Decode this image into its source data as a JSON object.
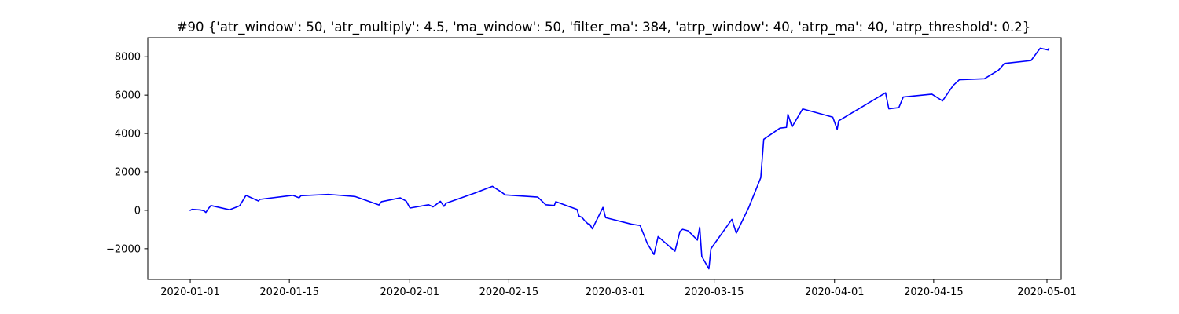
{
  "chart_data": {
    "type": "line",
    "title": "#90 {'atr_window': 50, 'atr_multiply': 4.5, 'ma_window': 50, 'filter_ma': 384, 'atrp_window': 40, 'atrp_ma': 40, 'atrp_threshold': 0.2}",
    "xlabel": "",
    "ylabel": "",
    "grid": false,
    "legend": "none",
    "xlim": [
      "2019-12-26",
      "2020-05-03"
    ],
    "ylim": [
      -3600,
      8990
    ],
    "x_ticks": [
      {
        "date": "2020-01-01",
        "label": "2020-01-01"
      },
      {
        "date": "2020-01-15",
        "label": "2020-01-15"
      },
      {
        "date": "2020-02-01",
        "label": "2020-02-01"
      },
      {
        "date": "2020-02-15",
        "label": "2020-02-15"
      },
      {
        "date": "2020-03-01",
        "label": "2020-03-01"
      },
      {
        "date": "2020-03-15",
        "label": "2020-03-15"
      },
      {
        "date": "2020-04-01",
        "label": "2020-04-01"
      },
      {
        "date": "2020-04-15",
        "label": "2020-04-15"
      },
      {
        "date": "2020-05-01",
        "label": "2020-05-01"
      }
    ],
    "y_ticks": [
      {
        "value": -2000,
        "label": "−2000"
      },
      {
        "value": 0,
        "label": "0"
      },
      {
        "value": 2000,
        "label": "2000"
      },
      {
        "value": 4000,
        "label": "4000"
      },
      {
        "value": 6000,
        "label": "6000"
      },
      {
        "value": 8000,
        "label": "8000"
      }
    ],
    "series": [
      {
        "color": "#0000ff",
        "points": [
          [
            "2020-01-01 00:00",
            0
          ],
          [
            "2020-01-01 06:00",
            50
          ],
          [
            "2020-01-02 10:00",
            20
          ],
          [
            "2020-01-02 22:00",
            -20
          ],
          [
            "2020-01-03 05:00",
            -110
          ],
          [
            "2020-01-03 14:00",
            100
          ],
          [
            "2020-01-03 22:00",
            250
          ],
          [
            "2020-01-06 13:00",
            30
          ],
          [
            "2020-01-07 18:00",
            200
          ],
          [
            "2020-01-08 00:00",
            250
          ],
          [
            "2020-01-08 21:00",
            780
          ],
          [
            "2020-01-10 16:00",
            480
          ],
          [
            "2020-01-10 19:00",
            570
          ],
          [
            "2020-01-15 12:00",
            780
          ],
          [
            "2020-01-16 09:00",
            650
          ],
          [
            "2020-01-16 15:00",
            760
          ],
          [
            "2020-01-20 12:00",
            830
          ],
          [
            "2020-01-24 07:00",
            720
          ],
          [
            "2020-01-27 16:00",
            280
          ],
          [
            "2020-01-28 00:00",
            450
          ],
          [
            "2020-01-30 16:00",
            650
          ],
          [
            "2020-01-31 12:00",
            480
          ],
          [
            "2020-02-01 01:00",
            120
          ],
          [
            "2020-02-03 16:00",
            290
          ],
          [
            "2020-02-04 07:00",
            180
          ],
          [
            "2020-02-05 08:00",
            470
          ],
          [
            "2020-02-05 20:00",
            210
          ],
          [
            "2020-02-06 03:00",
            370
          ],
          [
            "2020-02-10 05:00",
            900
          ],
          [
            "2020-02-12 16:00",
            1250
          ],
          [
            "2020-02-13 22:00",
            960
          ],
          [
            "2020-02-14 12:00",
            800
          ],
          [
            "2020-02-19 02:00",
            690
          ],
          [
            "2020-02-20 05:00",
            290
          ],
          [
            "2020-02-21 10:00",
            250
          ],
          [
            "2020-02-21 15:00",
            450
          ],
          [
            "2020-02-24 15:00",
            50
          ],
          [
            "2020-02-24 22:00",
            -300
          ],
          [
            "2020-02-25 08:00",
            -370
          ],
          [
            "2020-02-25 16:00",
            -520
          ],
          [
            "2020-02-26 04:00",
            -700
          ],
          [
            "2020-02-26 10:00",
            -720
          ],
          [
            "2020-02-26 19:00",
            -960
          ],
          [
            "2020-02-28 07:00",
            150
          ],
          [
            "2020-02-28 16:00",
            -380
          ],
          [
            "2020-03-03 08:00",
            -720
          ],
          [
            "2020-03-04 13:00",
            -790
          ],
          [
            "2020-03-05 14:00",
            -1750
          ],
          [
            "2020-03-06 12:00",
            -2300
          ],
          [
            "2020-03-07 02:00",
            -1370
          ],
          [
            "2020-03-09 11:00",
            -2130
          ],
          [
            "2020-03-10 04:00",
            -1100
          ],
          [
            "2020-03-10 13:00",
            -990
          ],
          [
            "2020-03-11 08:00",
            -1070
          ],
          [
            "2020-03-12 15:00",
            -1550
          ],
          [
            "2020-03-12 23:00",
            -880
          ],
          [
            "2020-03-13 06:00",
            -2400
          ],
          [
            "2020-03-14 06:00",
            -3050
          ],
          [
            "2020-03-14 13:00",
            -2000
          ],
          [
            "2020-03-17 12:00",
            -470
          ],
          [
            "2020-03-18 03:00",
            -1190
          ],
          [
            "2020-03-19 21:00",
            140
          ],
          [
            "2020-03-21 14:00",
            1700
          ],
          [
            "2020-03-22 00:00",
            3700
          ],
          [
            "2020-03-24 07:00",
            4280
          ],
          [
            "2020-03-25 05:00",
            4320
          ],
          [
            "2020-03-25 10:00",
            5000
          ],
          [
            "2020-03-26 00:00",
            4350
          ],
          [
            "2020-03-27 12:00",
            5280
          ],
          [
            "2020-03-31 18:00",
            4850
          ],
          [
            "2020-04-01 09:00",
            4220
          ],
          [
            "2020-04-01 14:00",
            4660
          ],
          [
            "2020-04-08 05:00",
            6120
          ],
          [
            "2020-04-08 16:00",
            5290
          ],
          [
            "2020-04-10 02:00",
            5350
          ],
          [
            "2020-04-10 17:00",
            5900
          ],
          [
            "2020-04-14 18:00",
            6050
          ],
          [
            "2020-04-16 06:00",
            5700
          ],
          [
            "2020-04-17 18:00",
            6500
          ],
          [
            "2020-04-18 15:00",
            6800
          ],
          [
            "2020-04-22 04:00",
            6850
          ],
          [
            "2020-04-24 04:00",
            7300
          ],
          [
            "2020-04-25 00:00",
            7650
          ],
          [
            "2020-04-28 18:00",
            7800
          ],
          [
            "2020-04-30 01:00",
            8440
          ],
          [
            "2020-05-01 05:00",
            8350
          ],
          [
            "2020-05-01 06:00",
            8420
          ]
        ]
      }
    ]
  }
}
